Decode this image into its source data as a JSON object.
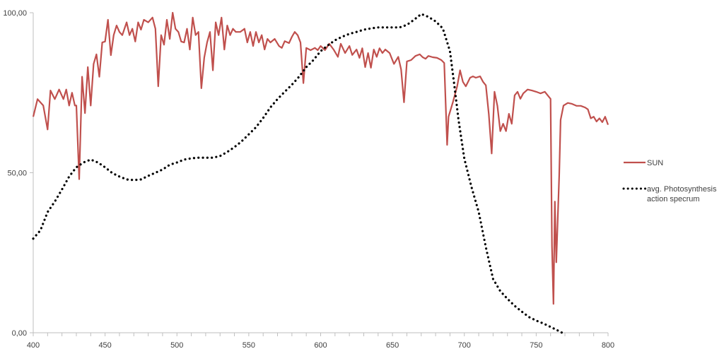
{
  "chart_data": {
    "type": "line",
    "title": "",
    "xlabel": "",
    "ylabel": "",
    "xlim": [
      400,
      800
    ],
    "ylim": [
      0,
      100
    ],
    "x_ticks": [
      "400",
      "450",
      "500",
      "550",
      "600",
      "650",
      "700",
      "750",
      "800"
    ],
    "x_minor_step": 10,
    "y_ticks": [
      "0,00",
      "50,00",
      "100,00"
    ],
    "grid": false,
    "legend_position": "right",
    "series": [
      {
        "name": "SUN",
        "color": "#c0504d",
        "style": "solid",
        "x": [
          400,
          403,
          407,
          410,
          412,
          415,
          418,
          421,
          423,
          425,
          427,
          429,
          430,
          432,
          434,
          436,
          438,
          440,
          442,
          444,
          446,
          448,
          450,
          452,
          454,
          456,
          458,
          460,
          462,
          465,
          467,
          469,
          471,
          473,
          475,
          477,
          480,
          483,
          485,
          487,
          489,
          491,
          493,
          495,
          497,
          499,
          501,
          503,
          505,
          507,
          509,
          511,
          513,
          515,
          517,
          519,
          521,
          523,
          525,
          527,
          529,
          531,
          533,
          535,
          537,
          539,
          541,
          544,
          547,
          549,
          551,
          553,
          555,
          557,
          559,
          561,
          563,
          565,
          568,
          571,
          573,
          575,
          578,
          580,
          582,
          584,
          586,
          588,
          590,
          593,
          596,
          598,
          600,
          603,
          606,
          609,
          612,
          614,
          617,
          620,
          622,
          625,
          627,
          629,
          631,
          633,
          635,
          637,
          639,
          641,
          643,
          645,
          648,
          651,
          654,
          656,
          658,
          660,
          663,
          666,
          669,
          671,
          673,
          675,
          678,
          681,
          684,
          686,
          688,
          689,
          692,
          695,
          697,
          699,
          701,
          704,
          706,
          708,
          711,
          713,
          715,
          717,
          719,
          721,
          723,
          725,
          727,
          729,
          731,
          733,
          735,
          737,
          739,
          741,
          744,
          747,
          750,
          753,
          756,
          758,
          760,
          761,
          762,
          763,
          764,
          766,
          767,
          769,
          772,
          775,
          778,
          781,
          784,
          786,
          788,
          790,
          792,
          794,
          796,
          798,
          800
        ],
        "y": [
          67.5,
          73,
          71,
          63.5,
          75.7,
          73,
          76,
          73,
          76,
          71,
          75,
          71,
          71,
          48,
          80,
          68.6,
          83,
          71,
          84,
          87,
          80,
          90.7,
          91,
          97.8,
          86.7,
          93,
          96,
          94,
          93,
          97,
          93,
          95,
          91,
          97,
          94.7,
          97.8,
          97,
          98.5,
          95,
          77,
          93,
          90,
          97.8,
          91.8,
          100,
          95,
          94,
          91,
          90.7,
          95,
          88.5,
          98.5,
          93,
          94,
          76.4,
          86,
          90.7,
          94,
          82,
          97,
          93,
          98.5,
          88.5,
          96,
          93,
          95,
          94,
          94,
          95,
          90.7,
          94,
          89.6,
          94,
          90.7,
          93,
          88.5,
          91.8,
          90.7,
          91.8,
          89.6,
          89,
          91.1,
          90.5,
          92.5,
          94,
          93,
          90.7,
          78,
          89,
          88.3,
          89,
          88.3,
          89.6,
          88.3,
          90.3,
          88.5,
          86.2,
          90.3,
          87.4,
          89.6,
          86.8,
          88.5,
          85.9,
          88.9,
          83,
          87.4,
          82.8,
          88.5,
          86.2,
          88.9,
          87.4,
          88.5,
          87.4,
          84,
          86.2,
          82.3,
          72,
          84.8,
          85.2,
          86.5,
          87,
          86.1,
          85.6,
          86.5,
          86.1,
          85.9,
          85.2,
          84.3,
          58.7,
          67.5,
          72,
          77,
          82,
          78.4,
          77,
          79.7,
          80.1,
          79.7,
          80.1,
          78.4,
          77.3,
          68.4,
          56,
          75.3,
          70.9,
          63,
          65.3,
          63,
          68.4,
          65.3,
          74.2,
          75.3,
          73.1,
          74.8,
          76,
          75.7,
          75.3,
          74.8,
          75.3,
          74.2,
          73.1,
          27,
          9,
          41,
          22,
          49,
          66.5,
          71,
          71.8,
          71.5,
          70.9,
          70.9,
          70.4,
          69.8,
          67,
          67.5,
          66,
          67,
          65.8,
          67.5,
          65
        ]
      },
      {
        "name": "avg. Photosynthesis action specrum",
        "color": "#000000",
        "style": "dotted",
        "x": [
          400,
          405,
          410,
          415,
          420,
          425,
          430,
          435,
          440,
          445,
          450,
          455,
          460,
          465,
          470,
          475,
          480,
          485,
          490,
          495,
          500,
          505,
          510,
          515,
          520,
          525,
          530,
          535,
          540,
          545,
          550,
          555,
          560,
          565,
          570,
          575,
          580,
          585,
          590,
          595,
          600,
          605,
          610,
          615,
          620,
          625,
          630,
          635,
          640,
          645,
          650,
          655,
          660,
          665,
          670,
          675,
          680,
          685,
          690,
          693,
          696,
          700,
          705,
          710,
          715,
          720,
          725,
          730,
          735,
          740,
          745,
          750,
          755,
          760,
          765,
          768
        ],
        "y": [
          29.4,
          32,
          37.7,
          41,
          44.8,
          48.8,
          51.7,
          53.2,
          54.1,
          53.2,
          51.7,
          49.9,
          48.8,
          47.9,
          47.7,
          47.9,
          49,
          50,
          51,
          52.5,
          53.2,
          54.1,
          54.5,
          54.7,
          54.7,
          54.7,
          55.2,
          56.5,
          58,
          59.8,
          62,
          64.2,
          67.1,
          70.4,
          73,
          75.3,
          77.5,
          80,
          83,
          85.2,
          88,
          89.8,
          91.4,
          92.5,
          93.4,
          94,
          94.7,
          95.1,
          95.4,
          95.4,
          95.4,
          95.4,
          96.2,
          97.8,
          99.6,
          98.7,
          97.3,
          95.1,
          88,
          77.5,
          66.4,
          54.3,
          45.5,
          37.7,
          26.7,
          16.8,
          13,
          10.6,
          8.4,
          6.6,
          4.9,
          3.8,
          2.9,
          1.8,
          0.7,
          0
        ]
      }
    ],
    "legend": {
      "sun_label": "SUN",
      "photo_label_line1": "avg. Photosynthesis",
      "photo_label_line2": "action specrum"
    }
  }
}
